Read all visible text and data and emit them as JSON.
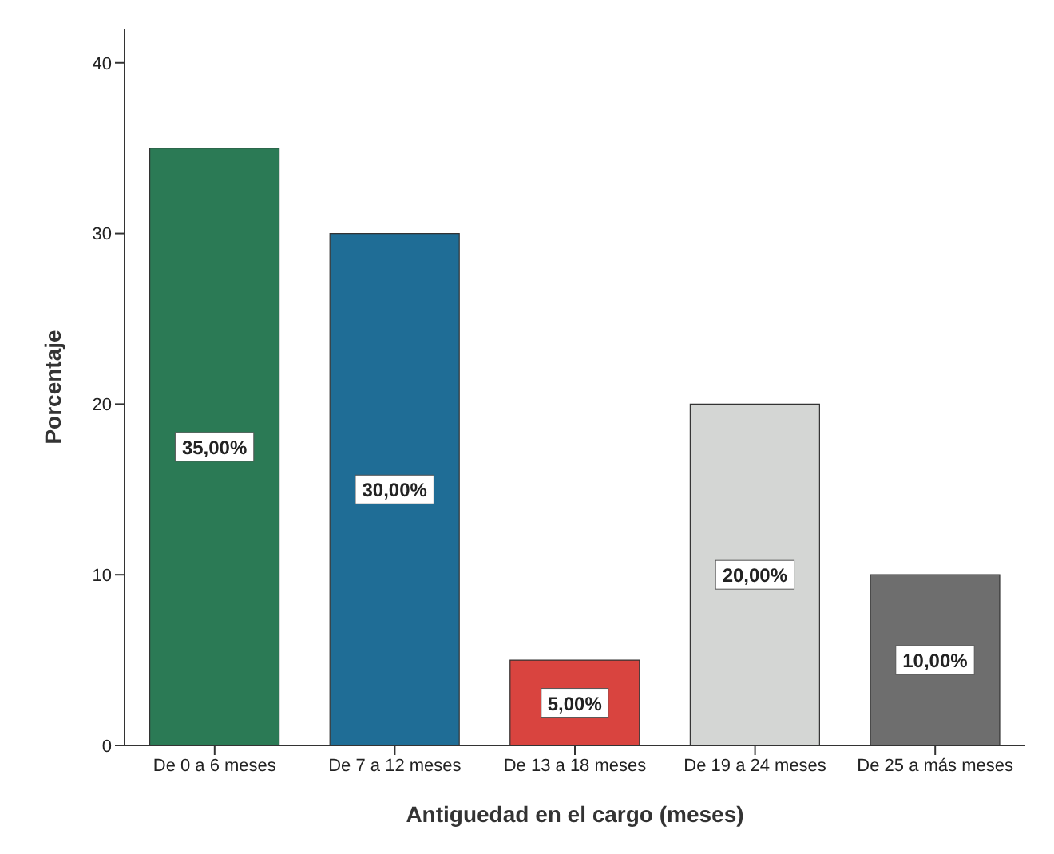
{
  "chart_data": {
    "type": "bar",
    "xlabel": "Antiguedad en el cargo (meses)",
    "ylabel": "Porcentaje",
    "categories": [
      "De 0 a 6 meses",
      "De 7 a 12 meses",
      "De 13 a 18 meses",
      "De 19 a 24 meses",
      "De 25 a más meses"
    ],
    "values": [
      35,
      30,
      5,
      20,
      10
    ],
    "colors": [
      "#2b7a55",
      "#1f6d96",
      "#d9443f",
      "#d4d6d4",
      "#6e6e6e"
    ],
    "value_labels": [
      "35,00%",
      "30,00%",
      "5,00%",
      "20,00%",
      "10,00%"
    ],
    "ylim": [
      0,
      42
    ],
    "yticks": [
      0,
      10,
      20,
      30,
      40
    ],
    "grid": false
  }
}
